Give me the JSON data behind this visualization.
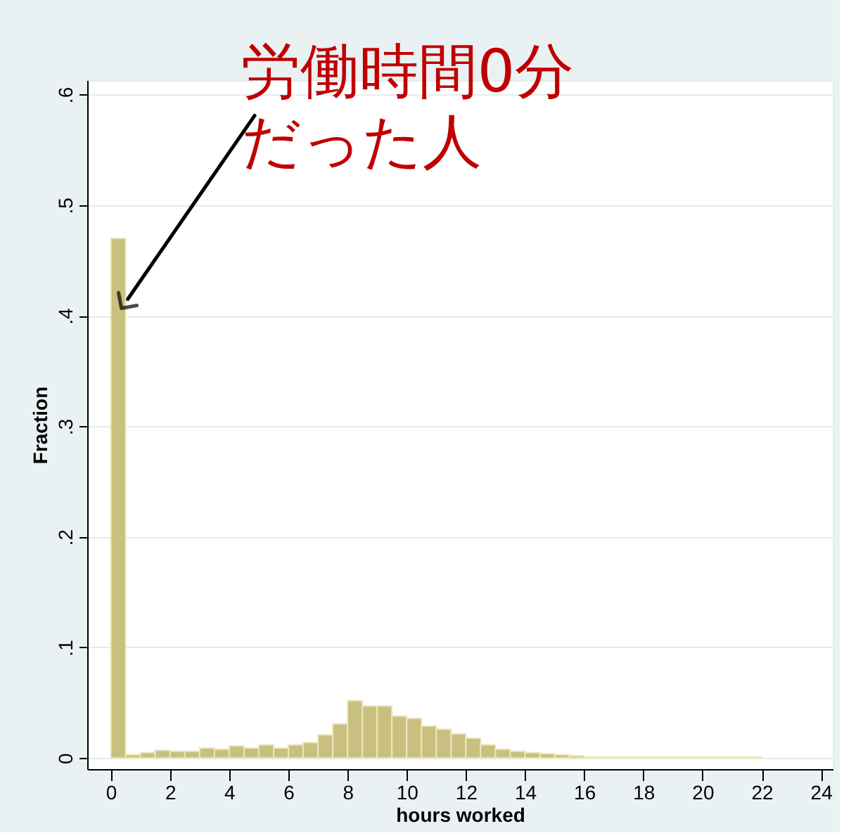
{
  "chart_data": {
    "type": "histogram",
    "xlabel": "hours worked",
    "ylabel": "Fraction",
    "bins": [
      0,
      0.5,
      1,
      1.5,
      2,
      2.5,
      3,
      3.5,
      4,
      4.5,
      5,
      5.5,
      6,
      6.5,
      7,
      7.5,
      8,
      8.5,
      9,
      9.5,
      10,
      10.5,
      11,
      11.5,
      12,
      12.5,
      13,
      13.5,
      14,
      14.5,
      15,
      15.5,
      16,
      16.5,
      17,
      17.5,
      18,
      18.5,
      19,
      19.5,
      20,
      20.5,
      21,
      21.5,
      22
    ],
    "values": [
      0.47,
      0.003,
      0.005,
      0.007,
      0.006,
      0.006,
      0.009,
      0.008,
      0.011,
      0.009,
      0.012,
      0.009,
      0.012,
      0.014,
      0.021,
      0.031,
      0.052,
      0.047,
      0.047,
      0.038,
      0.036,
      0.029,
      0.026,
      0.022,
      0.018,
      0.012,
      0.008,
      0.006,
      0.005,
      0.004,
      0.003,
      0.002,
      0.001,
      0.001,
      0.001,
      0.001,
      0.001,
      0.001,
      0.001,
      0.001,
      0.001,
      0.001,
      0.001,
      0.001
    ],
    "color": "#c9c07f",
    "xlim": [
      -0.8,
      24.4
    ],
    "xticks": [
      0,
      2,
      4,
      6,
      8,
      10,
      12,
      14,
      16,
      18,
      20,
      22,
      24
    ],
    "ylim": [
      -0.01,
      0.613
    ],
    "yticks": [
      {
        "value": 0,
        "label": "0"
      },
      {
        "value": 0.1,
        "label": ".1"
      },
      {
        "value": 0.2,
        "label": ".2"
      },
      {
        "value": 0.3,
        "label": ".3"
      },
      {
        "value": 0.4,
        "label": ".4"
      },
      {
        "value": 0.5,
        "label": ".5"
      },
      {
        "value": 0.6,
        "label": ".6"
      }
    ],
    "grid": "y",
    "annotations": [
      {
        "text": "労働時間0分だった人",
        "x": 0.57,
        "y": 0.415
      }
    ]
  }
}
